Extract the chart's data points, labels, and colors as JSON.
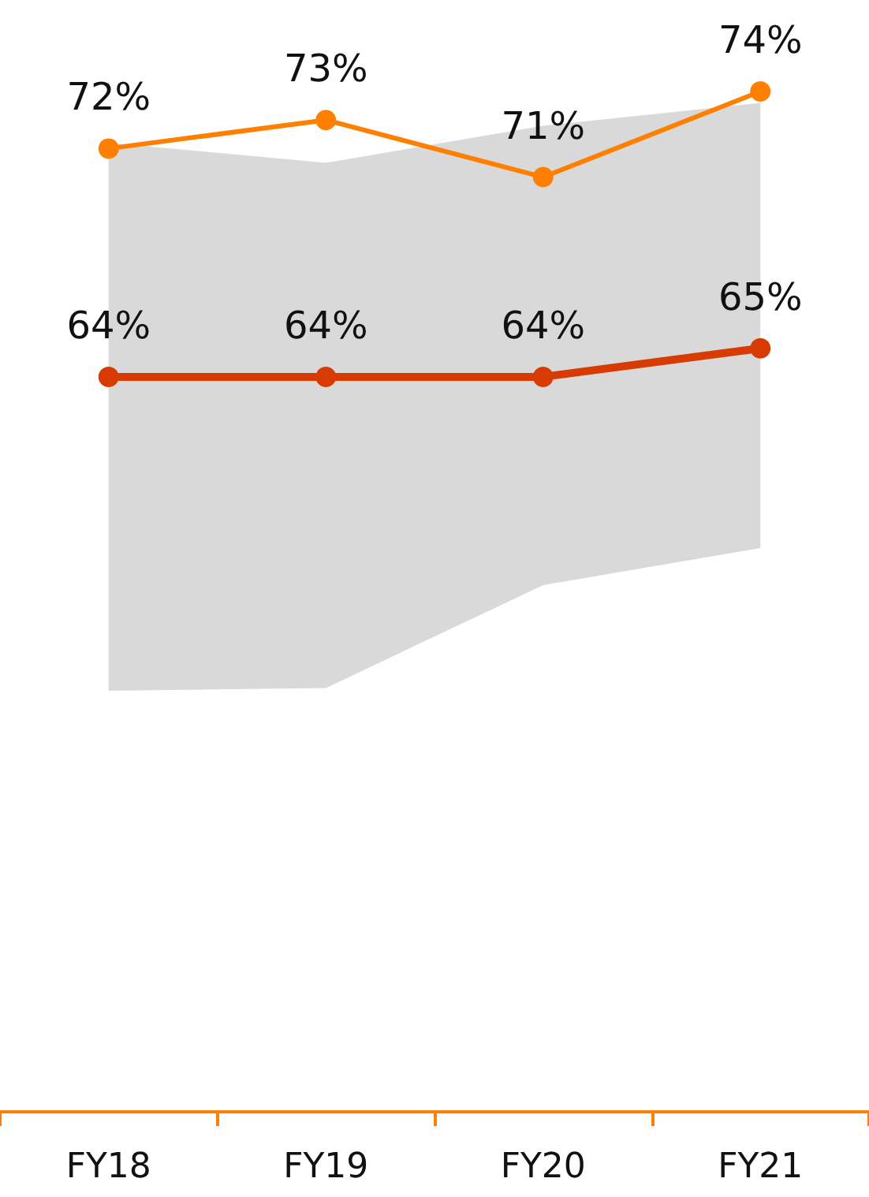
{
  "chart_data": {
    "type": "line",
    "categories": [
      "FY18",
      "FY19",
      "FY20",
      "FY21"
    ],
    "tick_labels": "x",
    "grid": false,
    "marker": "circle",
    "line_style": "solid",
    "series": [
      {
        "type": "area",
        "color": "#d9d9d9",
        "values": [
          null,
          null,
          null,
          null
        ],
        "lower": [
          53,
          53.1,
          56.7,
          58
        ],
        "upper": [
          72.2,
          71.5,
          72.8,
          73.6
        ]
      },
      {
        "color": "#ff8000",
        "values": [
          72,
          73,
          71,
          74
        ],
        "value_labels": [
          "72%",
          "73%",
          "71%",
          "74%"
        ]
      },
      {
        "color": "#d83b01",
        "values": [
          64,
          64,
          64,
          65
        ],
        "value_labels": [
          "64%",
          "64%",
          "64%",
          "65%"
        ]
      }
    ]
  }
}
